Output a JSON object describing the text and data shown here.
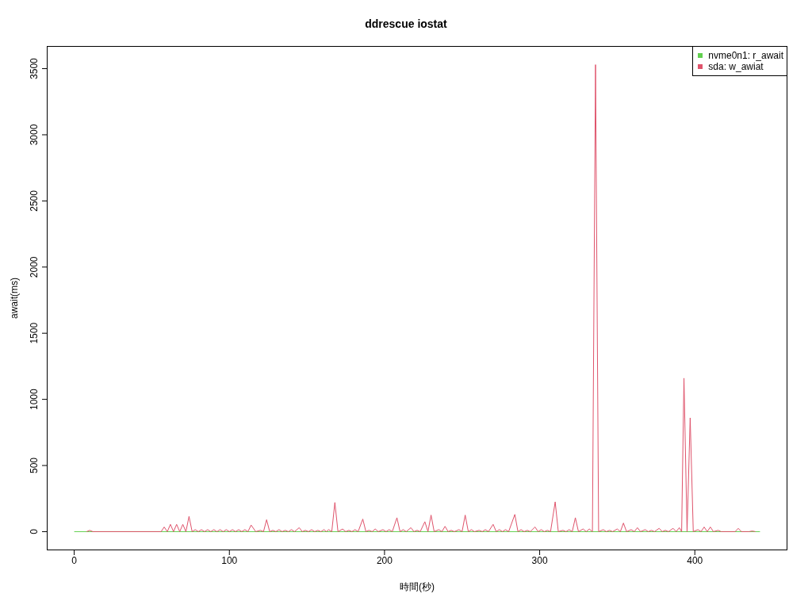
{
  "chart_data": {
    "type": "line",
    "title": "ddrescue iostat",
    "xlabel": "時間(秒)",
    "ylabel": "await(ms)",
    "xlim": [
      -17.68,
      459.68
    ],
    "ylim": [
      -141.2,
      3671.2
    ],
    "xticks": [
      0,
      100,
      200,
      300,
      400
    ],
    "yticks": [
      0,
      500,
      1000,
      1500,
      2000,
      2500,
      3000,
      3500
    ],
    "grid": false,
    "legend": "top right",
    "marker": "none",
    "line_style": "solid",
    "series": [
      {
        "name": "nvme0n1: r_await",
        "color": "#61d04f",
        "x": [
          0,
          442
        ],
        "values": [
          0,
          0
        ]
      },
      {
        "name": "sda: w_awiat",
        "color": "#df536b",
        "x": [
          8,
          10,
          12,
          56,
          58,
          60,
          62,
          64,
          66,
          68,
          70,
          72,
          74,
          76,
          78,
          80,
          82,
          84,
          86,
          88,
          90,
          92,
          94,
          96,
          98,
          100,
          102,
          104,
          106,
          108,
          110,
          112,
          114,
          117,
          120,
          122,
          124,
          126,
          128,
          130,
          132,
          134,
          136,
          138,
          140,
          142,
          145,
          147,
          149,
          151,
          153,
          155,
          157,
          159,
          161,
          162.5,
          164,
          166,
          168,
          170,
          173,
          175,
          177,
          179,
          181,
          183,
          186,
          188,
          190,
          192,
          194,
          196,
          199,
          201,
          203,
          205,
          208,
          210,
          212,
          214,
          217,
          219,
          221,
          223,
          226,
          228,
          230,
          232,
          235,
          237,
          239,
          241,
          243,
          245,
          248,
          250,
          252,
          254,
          256,
          258,
          261,
          263,
          265,
          267,
          270,
          272,
          274,
          276,
          278,
          280,
          284,
          286,
          288,
          290,
          292,
          294,
          297,
          299,
          301,
          303,
          305,
          307,
          310,
          312,
          315,
          317,
          319,
          321,
          323,
          325,
          328,
          330,
          332,
          334,
          336,
          338,
          341,
          343,
          345,
          347,
          350,
          352,
          354,
          356,
          359,
          361,
          363,
          365,
          368,
          370,
          372,
          374,
          377,
          379,
          381,
          383,
          386,
          388,
          390,
          391.5,
          393,
          395,
          397,
          399,
          402,
          404,
          406,
          408,
          410,
          412,
          415,
          417,
          426,
          428,
          430,
          435,
          437,
          439
        ],
        "values": [
          0,
          10,
          0,
          0,
          35,
          0,
          55,
          0,
          55,
          0,
          55,
          0,
          115,
          0,
          15,
          0,
          15,
          0,
          15,
          0,
          15,
          0,
          15,
          0,
          15,
          0,
          15,
          0,
          15,
          0,
          15,
          0,
          50,
          0,
          10,
          0,
          90,
          0,
          10,
          0,
          15,
          0,
          10,
          0,
          15,
          0,
          30,
          0,
          10,
          0,
          15,
          0,
          10,
          0,
          15,
          0,
          15,
          0,
          220,
          0,
          20,
          0,
          10,
          0,
          15,
          0,
          95,
          0,
          10,
          0,
          20,
          0,
          15,
          0,
          15,
          0,
          105,
          0,
          15,
          0,
          30,
          0,
          10,
          0,
          75,
          0,
          125,
          0,
          15,
          0,
          40,
          0,
          10,
          0,
          15,
          0,
          125,
          0,
          15,
          0,
          10,
          0,
          15,
          0,
          55,
          0,
          15,
          0,
          15,
          0,
          130,
          0,
          15,
          0,
          10,
          0,
          35,
          0,
          15,
          0,
          10,
          0,
          225,
          0,
          10,
          0,
          15,
          0,
          105,
          0,
          20,
          0,
          20,
          0,
          3530,
          0,
          15,
          0,
          10,
          0,
          20,
          0,
          65,
          0,
          15,
          0,
          30,
          0,
          15,
          0,
          10,
          0,
          25,
          0,
          10,
          0,
          25,
          0,
          30,
          0,
          1160,
          0,
          860,
          0,
          15,
          0,
          35,
          0,
          35,
          0,
          10,
          0,
          0,
          25,
          0,
          0,
          5,
          0
        ]
      }
    ]
  }
}
